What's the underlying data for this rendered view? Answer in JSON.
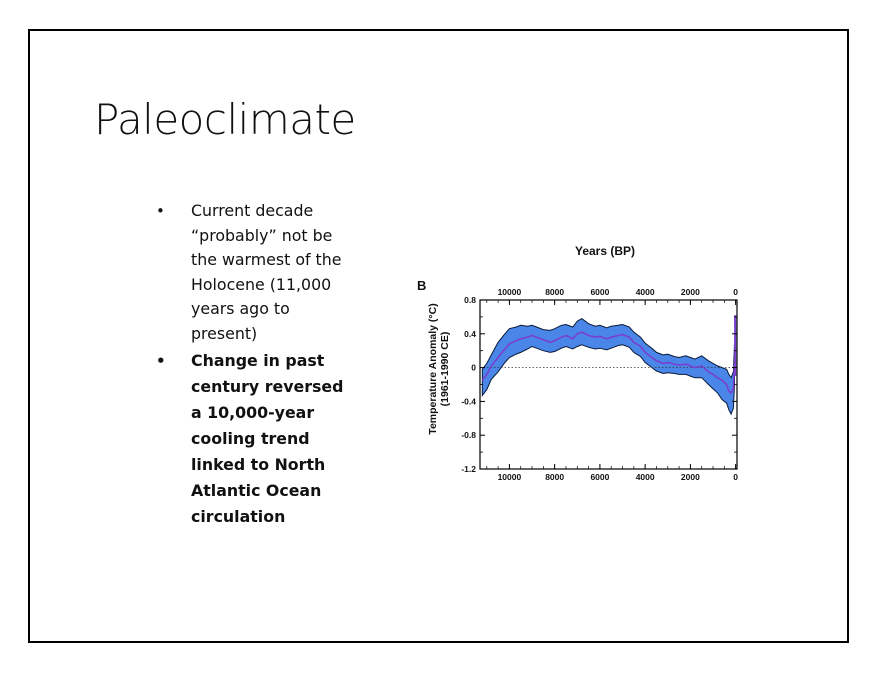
{
  "slide": {
    "title": "Paleoclimate",
    "bullets": [
      "Current decade “probably” not be the warmest of the Holocene (11,000 years ago to present)",
      "Change in past century reversed a 10,000-year cooling trend linked to North Atlantic Ocean circulation"
    ],
    "bullet_glyph": "•"
  },
  "chart_data": {
    "type": "line",
    "panel_label": "B",
    "title": "",
    "xlabel": "Years (BP)",
    "ylabel": "Temperature Anomaly (°C)",
    "ylabel_sub": "(1961-1990 CE)",
    "xlim": [
      11300,
      -60
    ],
    "ylim": [
      -1.2,
      0.8
    ],
    "x_reversed": true,
    "x_ticks": [
      10000,
      8000,
      6000,
      4000,
      2000,
      0
    ],
    "y_ticks": [
      0.8,
      0.4,
      0,
      -0.4,
      -0.8,
      -1.2
    ],
    "y_tick_labels": [
      "0.8",
      "0.4",
      "0",
      "-0.4",
      "-0.8",
      "-1.2"
    ],
    "zero_line": "dotted",
    "band_color": "#4a86e8",
    "line_color": "#7a3fd0",
    "series": [
      {
        "x": [
          11200,
          11000,
          10800,
          10500,
          10200,
          10000,
          9700,
          9500,
          9200,
          9000,
          8800,
          8500,
          8200,
          8000,
          7700,
          7500,
          7200,
          7000,
          6800,
          6500,
          6200,
          6000,
          5700,
          5500,
          5200,
          5000,
          4700,
          4500,
          4200,
          4000,
          3700,
          3500,
          3200,
          3000,
          2700,
          2500,
          2200,
          2000,
          1800,
          1500,
          1200,
          1000,
          800,
          600,
          400,
          300,
          200,
          100,
          50
        ],
        "values": [
          -0.15,
          -0.08,
          0.02,
          0.12,
          0.22,
          0.28,
          0.32,
          0.34,
          0.36,
          0.38,
          0.36,
          0.33,
          0.3,
          0.32,
          0.36,
          0.38,
          0.34,
          0.4,
          0.42,
          0.38,
          0.36,
          0.37,
          0.34,
          0.36,
          0.38,
          0.39,
          0.36,
          0.3,
          0.25,
          0.18,
          0.12,
          0.08,
          0.05,
          0.06,
          0.04,
          0.03,
          0.04,
          0.02,
          0.0,
          0.02,
          -0.05,
          -0.08,
          -0.12,
          -0.15,
          -0.2,
          -0.28,
          -0.3,
          -0.25,
          0.05
        ],
        "upper": [
          -0.02,
          0.05,
          0.15,
          0.3,
          0.4,
          0.46,
          0.48,
          0.5,
          0.49,
          0.5,
          0.48,
          0.45,
          0.44,
          0.46,
          0.5,
          0.51,
          0.48,
          0.55,
          0.58,
          0.52,
          0.49,
          0.5,
          0.47,
          0.49,
          0.5,
          0.51,
          0.48,
          0.42,
          0.36,
          0.29,
          0.23,
          0.18,
          0.15,
          0.16,
          0.13,
          0.12,
          0.14,
          0.12,
          0.1,
          0.14,
          0.08,
          0.05,
          0.02,
          0.0,
          -0.02,
          -0.08,
          -0.12,
          -0.05,
          0.28
        ],
        "lower": [
          -0.33,
          -0.26,
          -0.14,
          -0.05,
          0.06,
          0.12,
          0.16,
          0.18,
          0.22,
          0.25,
          0.23,
          0.2,
          0.18,
          0.19,
          0.23,
          0.25,
          0.22,
          0.25,
          0.27,
          0.24,
          0.22,
          0.23,
          0.21,
          0.23,
          0.26,
          0.27,
          0.24,
          0.18,
          0.13,
          0.06,
          0.0,
          -0.04,
          -0.07,
          -0.06,
          -0.07,
          -0.08,
          -0.08,
          -0.1,
          -0.12,
          -0.12,
          -0.2,
          -0.25,
          -0.3,
          -0.38,
          -0.42,
          -0.5,
          -0.55,
          -0.48,
          -0.2
        ]
      }
    ],
    "instrumental_spike": {
      "x": [
        20,
        20
      ],
      "values": [
        -0.1,
        0.62
      ]
    }
  }
}
